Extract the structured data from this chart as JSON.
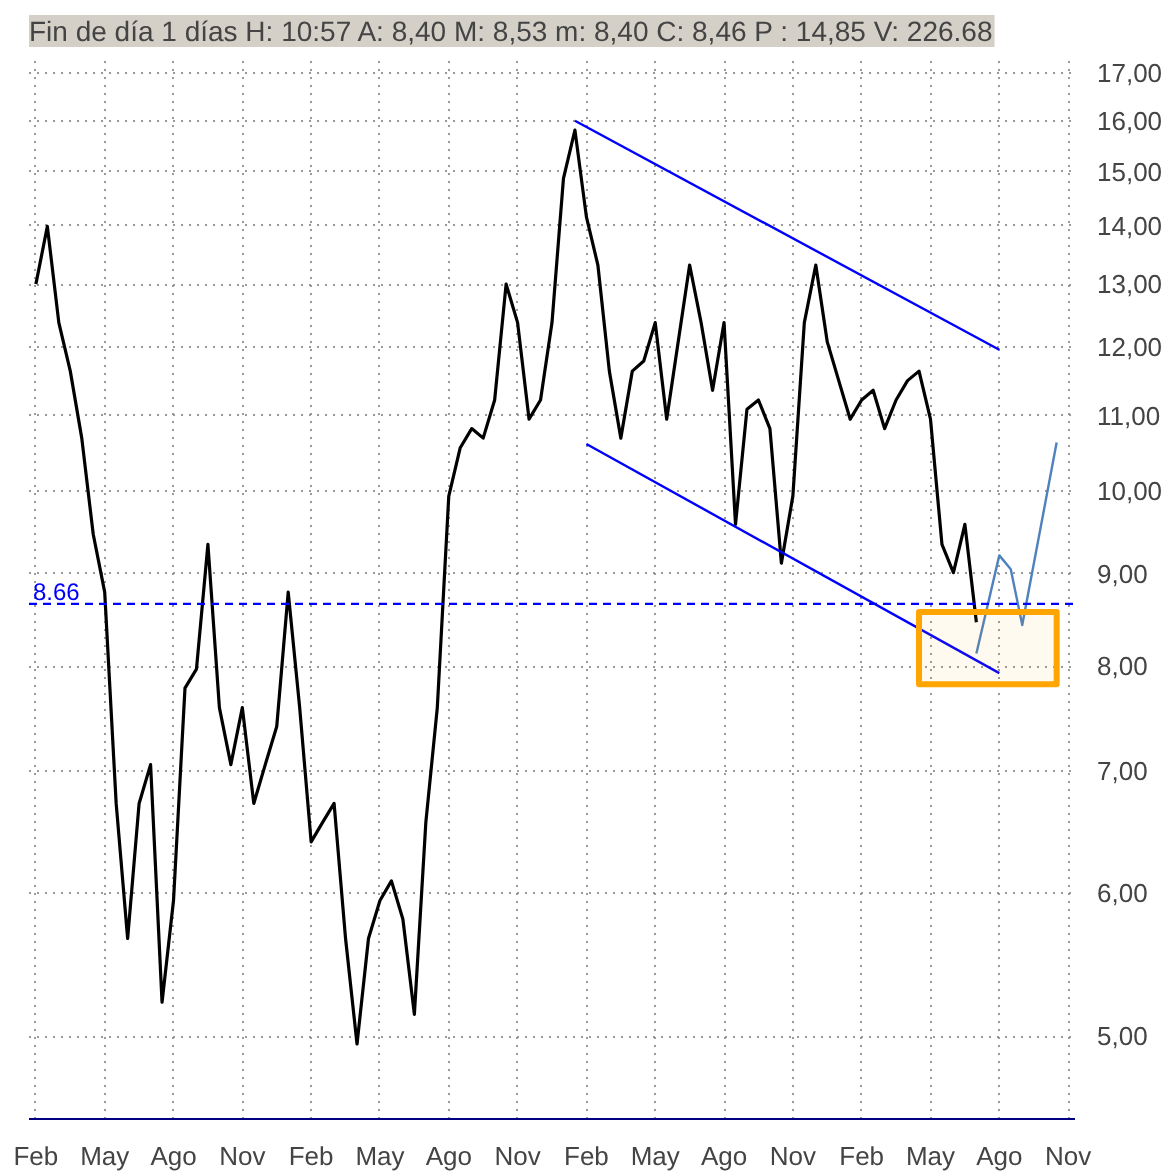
{
  "chart_data": {
    "type": "line",
    "title": "Fin de día 1 días H: 10:57 A: 8,40 M: 8,53 m: 8,40 C: 8,46 P : 14,85 V: 226.68",
    "log": true,
    "grid": true,
    "ylim": [
      4.5,
      17.35
    ],
    "categories": [
      "Feb",
      null,
      null,
      null,
      null,
      null,
      "May",
      null,
      null,
      null,
      null,
      null,
      "Ago",
      null,
      null,
      null,
      null,
      null,
      "Nov",
      null,
      null,
      null,
      null,
      null,
      "Feb",
      null,
      null,
      null,
      null,
      null,
      "May",
      null,
      null,
      null,
      null,
      null,
      "Ago",
      null,
      null,
      null,
      null,
      null,
      "Nov",
      null,
      null,
      null,
      null,
      null,
      "Feb",
      null,
      null,
      null,
      null,
      null,
      "May",
      null,
      null,
      null,
      null,
      null,
      "Ago",
      null,
      null,
      null,
      null,
      null,
      "Nov",
      null,
      null,
      null,
      null,
      null,
      "Feb",
      null,
      null,
      null,
      null,
      null,
      "May",
      null,
      null,
      null,
      null,
      null,
      "Ago",
      null,
      null,
      null,
      null,
      null,
      "Nov"
    ],
    "yticks": [
      {
        "value": 5,
        "label": "5,00"
      },
      {
        "value": 6,
        "label": "6,00"
      },
      {
        "value": 7,
        "label": "7,00"
      },
      {
        "value": 8,
        "label": "8,00"
      },
      {
        "value": 9,
        "label": "9,00"
      },
      {
        "value": 10,
        "label": "10,00"
      },
      {
        "value": 11,
        "label": "11,00"
      },
      {
        "value": 12,
        "label": "12,00"
      },
      {
        "value": 13,
        "label": "13,00"
      },
      {
        "value": 14,
        "label": "14,00"
      },
      {
        "value": 15,
        "label": "15,00"
      },
      {
        "value": 16,
        "label": "16,00"
      },
      {
        "value": 17,
        "label": "17,00"
      }
    ],
    "ref_lines": [
      {
        "axis": "y",
        "value": 8.66,
        "label": "8.66",
        "color": "#0000ff",
        "line_style": "dashed"
      }
    ],
    "series": [
      {
        "color": "#000000",
        "values": [
          13.0,
          13.99,
          12.38,
          11.64,
          10.69,
          9.46,
          8.79,
          6.72,
          5.66,
          6.72,
          7.06,
          5.22,
          5.94,
          7.78,
          7.97,
          9.34,
          7.59,
          7.06,
          7.59,
          6.72,
          7.06,
          7.41,
          8.79,
          7.59,
          6.4,
          6.56,
          6.72,
          5.66,
          4.95,
          5.66,
          5.94,
          6.09,
          5.8,
          5.14,
          6.56,
          7.59,
          9.93,
          10.56,
          10.82,
          10.69,
          11.22,
          13.0,
          12.38,
          10.95,
          11.22,
          12.38,
          14.87,
          15.81,
          14.16,
          13.32,
          11.64,
          10.69,
          11.64,
          11.79,
          12.38,
          10.95,
          12.08,
          13.32,
          12.38,
          11.36,
          12.38,
          9.58,
          11.09,
          11.22,
          10.82,
          9.12,
          9.93,
          12.38,
          13.32,
          12.08,
          11.5,
          10.95,
          11.22,
          11.36,
          10.82,
          11.22,
          11.5,
          11.64,
          10.95,
          9.34,
          9.01,
          9.58,
          8.46,
          null,
          null,
          null,
          null,
          null,
          null,
          null,
          null
        ]
      },
      {
        "color": "#0000ff",
        "values": [
          null,
          null,
          null,
          null,
          null,
          null,
          null,
          null,
          null,
          null,
          null,
          null,
          null,
          null,
          null,
          null,
          null,
          null,
          null,
          null,
          null,
          null,
          null,
          null,
          null,
          null,
          null,
          null,
          null,
          null,
          null,
          null,
          null,
          null,
          null,
          null,
          null,
          null,
          null,
          null,
          null,
          null,
          null,
          null,
          null,
          null,
          null,
          16.0,
          null,
          null,
          null,
          null,
          null,
          null,
          null,
          null,
          null,
          null,
          null,
          null,
          null,
          null,
          null,
          null,
          null,
          null,
          null,
          null,
          null,
          null,
          null,
          null,
          null,
          null,
          null,
          null,
          null,
          null,
          null,
          null,
          null,
          null,
          null,
          null,
          11.96,
          null,
          null,
          null,
          null,
          null,
          null
        ]
      },
      {
        "color": "#0000ff",
        "values": [
          null,
          null,
          null,
          null,
          null,
          null,
          null,
          null,
          null,
          null,
          null,
          null,
          null,
          null,
          null,
          null,
          null,
          null,
          null,
          null,
          null,
          null,
          null,
          null,
          null,
          null,
          null,
          null,
          null,
          null,
          null,
          null,
          null,
          null,
          null,
          null,
          null,
          null,
          null,
          null,
          null,
          null,
          null,
          null,
          null,
          null,
          null,
          null,
          10.61,
          null,
          null,
          null,
          null,
          null,
          null,
          null,
          null,
          null,
          null,
          null,
          null,
          null,
          null,
          null,
          null,
          null,
          null,
          null,
          null,
          null,
          null,
          null,
          null,
          null,
          null,
          null,
          null,
          null,
          null,
          null,
          null,
          null,
          null,
          null,
          7.93,
          null,
          null,
          null,
          null,
          null,
          null
        ]
      },
      {
        "color": "#4f81bd",
        "values": [
          null,
          null,
          null,
          null,
          null,
          null,
          null,
          null,
          null,
          null,
          null,
          null,
          null,
          null,
          null,
          null,
          null,
          null,
          null,
          null,
          null,
          null,
          null,
          null,
          null,
          null,
          null,
          null,
          null,
          null,
          null,
          null,
          null,
          null,
          null,
          null,
          null,
          null,
          null,
          null,
          null,
          null,
          null,
          null,
          null,
          null,
          null,
          null,
          null,
          null,
          null,
          null,
          null,
          null,
          null,
          null,
          null,
          null,
          null,
          null,
          null,
          null,
          null,
          null,
          null,
          null,
          null,
          null,
          null,
          null,
          null,
          null,
          null,
          null,
          null,
          null,
          null,
          null,
          null,
          null,
          null,
          null,
          8.13,
          null,
          9.21,
          9.05,
          8.43,
          null,
          null,
          10.63,
          null
        ]
      },
      {
        "color": "#ffa500",
        "values": [
          null,
          null,
          null,
          null,
          null,
          null,
          null,
          null,
          null,
          null,
          null,
          null,
          null,
          null,
          null,
          null,
          null,
          null,
          null,
          null,
          null,
          null,
          null,
          null,
          null,
          null,
          null,
          null,
          null,
          null,
          null,
          null,
          null,
          null,
          null,
          null,
          null,
          null,
          null,
          null,
          null,
          null,
          null,
          null,
          null,
          null,
          null,
          null,
          null,
          null,
          null,
          null,
          null,
          null,
          null,
          null,
          null,
          null,
          null,
          null,
          null,
          null,
          null,
          null,
          null,
          null,
          null,
          null,
          null,
          null,
          null,
          null,
          null,
          null,
          null,
          null,
          null,
          null,
          null,
          null,
          null,
          null,
          null,
          null,
          null,
          null,
          null,
          null,
          null,
          null,
          null
        ],
        "lower": [
          null,
          null,
          null,
          null,
          null,
          null,
          null,
          null,
          null,
          null,
          null,
          null,
          null,
          null,
          null,
          null,
          null,
          null,
          null,
          null,
          null,
          null,
          null,
          null,
          null,
          null,
          null,
          null,
          null,
          null,
          null,
          null,
          null,
          null,
          null,
          null,
          null,
          null,
          null,
          null,
          null,
          null,
          null,
          null,
          null,
          null,
          null,
          null,
          null,
          null,
          null,
          null,
          null,
          null,
          null,
          null,
          null,
          null,
          null,
          null,
          null,
          null,
          null,
          null,
          null,
          null,
          null,
          null,
          null,
          null,
          null,
          null,
          null,
          null,
          null,
          null,
          null,
          7.82,
          null,
          null,
          null,
          null,
          null,
          null,
          null,
          null,
          null,
          null,
          null,
          7.82,
          null
        ],
        "upper": [
          null,
          null,
          null,
          null,
          null,
          null,
          null,
          null,
          null,
          null,
          null,
          null,
          null,
          null,
          null,
          null,
          null,
          null,
          null,
          null,
          null,
          null,
          null,
          null,
          null,
          null,
          null,
          null,
          null,
          null,
          null,
          null,
          null,
          null,
          null,
          null,
          null,
          null,
          null,
          null,
          null,
          null,
          null,
          null,
          null,
          null,
          null,
          null,
          null,
          null,
          null,
          null,
          null,
          null,
          null,
          null,
          null,
          null,
          null,
          null,
          null,
          null,
          null,
          null,
          null,
          null,
          null,
          null,
          null,
          null,
          null,
          null,
          null,
          null,
          null,
          null,
          null,
          8.57,
          null,
          null,
          null,
          null,
          null,
          null,
          null,
          null,
          null,
          null,
          null,
          8.57,
          null
        ]
      }
    ]
  }
}
